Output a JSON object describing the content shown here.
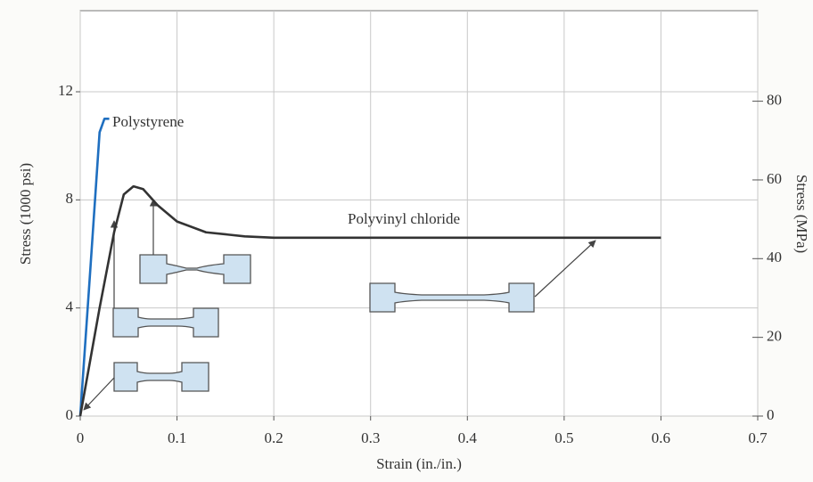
{
  "chart_data": {
    "type": "line",
    "xlabel": "Strain (in./in.)",
    "ylabel": "Stress (1000 psi)",
    "y2label": "Stress (MPa)",
    "xlim": [
      0,
      0.7
    ],
    "xticks": [
      0,
      0.1,
      0.2,
      0.3,
      0.4,
      0.5,
      0.6,
      0.7
    ],
    "ylim": [
      0,
      15
    ],
    "yticks": [
      0,
      4,
      8,
      12
    ],
    "y2lim": [
      0,
      103
    ],
    "y2ticks": [
      0,
      20,
      40,
      60,
      80
    ],
    "grid": true,
    "series": [
      {
        "name": "Polystyrene",
        "color": "#1f6fc0",
        "x": [
          0,
          0.01,
          0.02,
          0.025,
          0.03
        ],
        "values": [
          0,
          5.2,
          10.5,
          11,
          11
        ]
      },
      {
        "name": "Polyvinyl chloride",
        "color": "#333333",
        "x": [
          0,
          0.02,
          0.035,
          0.045,
          0.055,
          0.065,
          0.08,
          0.1,
          0.13,
          0.17,
          0.2,
          0.4,
          0.6
        ],
        "values": [
          0,
          4,
          6.8,
          8.2,
          8.5,
          8.4,
          7.8,
          7.2,
          6.8,
          6.65,
          6.6,
          6.6,
          6.6
        ]
      }
    ]
  }
}
